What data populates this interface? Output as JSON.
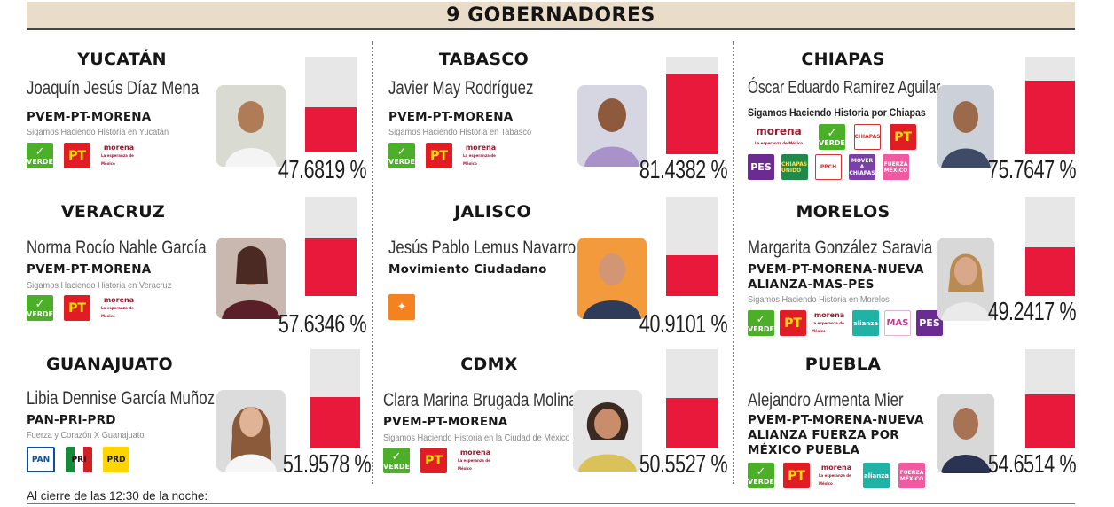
{
  "banner": {
    "title": "9 GOBERNADORES"
  },
  "footer": {
    "note": "Al cierre de las 12:30 de la noche:"
  },
  "colors": {
    "bar_fill": "#e8193a",
    "bar_track": "#e7e7e7",
    "banner_bg": "#e9ddc9"
  },
  "logo_labels": {
    "verde": "VERDE",
    "pt": "PT",
    "morena": "morena",
    "morena_tag": "La esperanza de México",
    "pan": "PAN",
    "pri": "PRI",
    "prd": "PRD",
    "pes": "PES",
    "alianza": "alianza",
    "mas": "MAS",
    "fuerza": "FUERZA MÉXICO",
    "chpunido": "CHIAPAS UNIDO",
    "ppch": "PPCH",
    "mover": "MOVER A CHIAPAS",
    "chiapas": "CHIAPAS"
  },
  "states": [
    {
      "state": "YUCATÁN",
      "candidate": "Joaquín Jesús Díaz Mena",
      "party": "PVEM-PT-MORENA",
      "coalition": "Sigamos Haciendo Historia en Yucatán",
      "percent_value": 47.6819,
      "percent_label": "47.6819 %"
    },
    {
      "state": "TABASCO",
      "candidate": "Javier May Rodríguez",
      "party": "PVEM-PT-MORENA",
      "coalition": "Sigamos Haciendo Historia en Tabasco",
      "percent_value": 81.4382,
      "percent_label": "81.4382 %"
    },
    {
      "state": "CHIAPAS",
      "candidate": "Óscar Eduardo Ramírez Aguilar",
      "party": "",
      "coalition": "Sigamos Haciendo Historia por Chiapas",
      "percent_value": 75.7647,
      "percent_label": "75.7647 %"
    },
    {
      "state": "VERACRUZ",
      "candidate": "Norma Rocío Nahle García",
      "party": "PVEM-PT-MORENA",
      "coalition": "Sigamos Haciendo Historia en Veracruz",
      "percent_value": 57.6346,
      "percent_label": "57.6346 %"
    },
    {
      "state": "JALISCO",
      "candidate": "Jesús Pablo Lemus Navarro",
      "party": "Movimiento Ciudadano",
      "coalition": "",
      "percent_value": 40.9101,
      "percent_label": "40.9101 %"
    },
    {
      "state": "MORELOS",
      "candidate": "Margarita González Saravia",
      "party": "PVEM-PT-MORENA-NUEVA ALIANZA-MAS-PES",
      "coalition": "Sigamos Haciendo Historia en Morelos",
      "percent_value": 49.2417,
      "percent_label": "49.2417 %"
    },
    {
      "state": "GUANAJUATO",
      "candidate": "Libia Dennise García Muñoz Ledo",
      "party": "PAN-PRI-PRD",
      "coalition": "Fuerza y Corazón X Guanajuato",
      "percent_value": 51.9578,
      "percent_label": "51.9578 %"
    },
    {
      "state": "CDMX",
      "candidate": "Clara Marina Brugada Molina",
      "party": "PVEM-PT-MORENA",
      "coalition": "Sigamos Haciendo Historia en la Ciudad de México",
      "percent_value": 50.5527,
      "percent_label": "50.5527 %"
    },
    {
      "state": "PUEBLA",
      "candidate": "Alejandro Armenta Mier",
      "party": "PVEM-PT-MORENA-NUEVA ALIANZA FUERZA POR MÉXICO PUEBLA",
      "coalition": "",
      "percent_value": 54.6514,
      "percent_label": "54.6514 %"
    }
  ]
}
